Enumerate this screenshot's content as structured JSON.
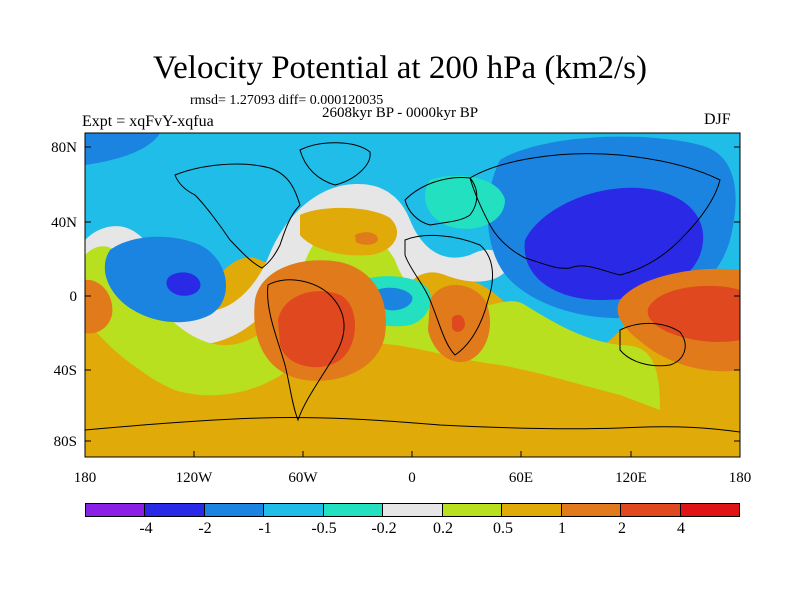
{
  "figure": {
    "title": "Velocity Potential at 200 hPa (km2/s)",
    "stats": "rmsd= 1.27093 diff= 0.000120035",
    "period": "2608kyr BP - 0000kyr BP",
    "experiment": "Expt = xqFvY-xqfua",
    "season": "DJF"
  },
  "axes": {
    "lat_labels": [
      "80N",
      "40N",
      "0",
      "40S",
      "80S"
    ],
    "lon_labels": [
      "180",
      "120W",
      "60W",
      "0",
      "60E",
      "120E",
      "180"
    ]
  },
  "colorbar": {
    "colors": [
      "#8a1fe6",
      "#2a2ae6",
      "#1b84e0",
      "#1fbde8",
      "#22e0c0",
      "#e6e6e6",
      "#b8e01f",
      "#e0aa08",
      "#e07a1a",
      "#e0481f",
      "#e01414"
    ],
    "labels": [
      "-4",
      "-2",
      "-1",
      "-0.5",
      "-0.2",
      "0.2",
      "0.5",
      "1",
      "2",
      "4"
    ]
  },
  "map_colors": {
    "background": "#e0aa08",
    "ocean_cyan": "#1fbde8",
    "dark_blue": "#2a2ae6",
    "mid_blue": "#1b84e0",
    "teal": "#22e0c0",
    "white_band": "#e6e6e6",
    "lime": "#b8e01f",
    "orange": "#e07a1a",
    "red_orange": "#e0481f"
  }
}
